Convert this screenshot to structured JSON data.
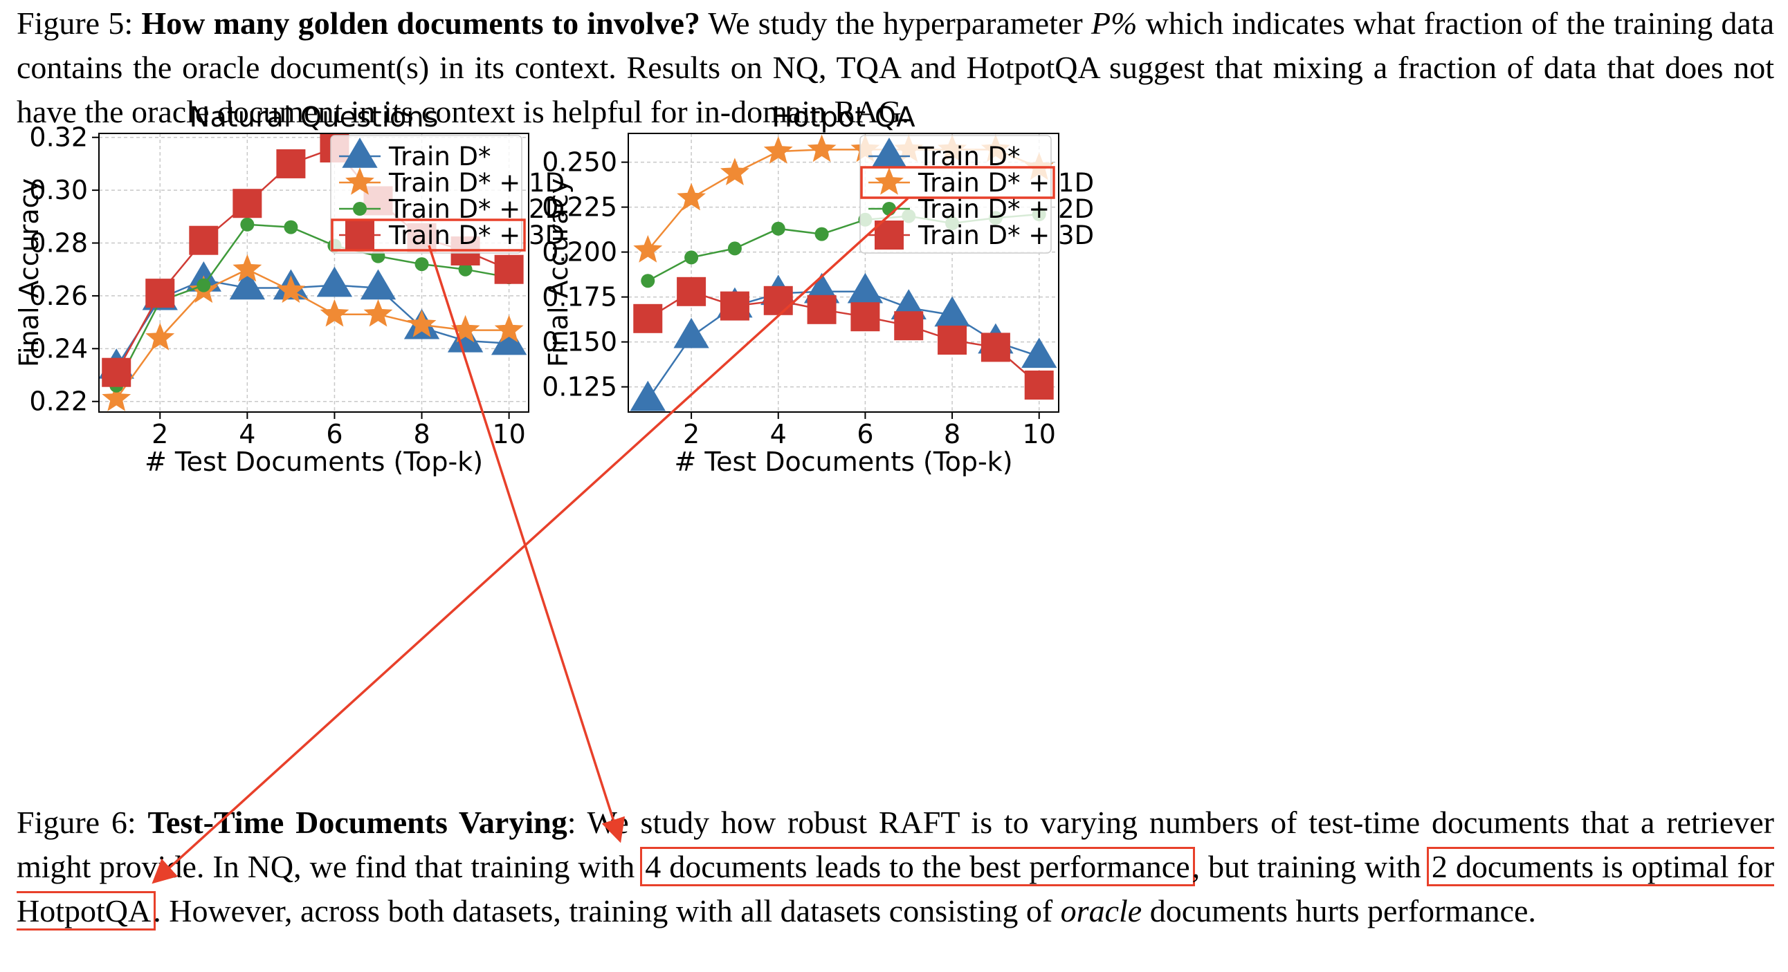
{
  "fig5_caption": {
    "label": "Figure 5:",
    "title": "How many golden documents to involve?",
    "text_a": " We study the hyperparameter ",
    "math": "P%",
    "text_b": " which indicates what fraction of the training data contains the oracle document(s) in its context. Results on NQ, TQA and HotpotQA suggest that mixing a fraction of data that does not have the oracle document in its context is helpful for in-domain RAG."
  },
  "fig6_caption": {
    "label": "Figure 6:",
    "title": "Test-Time Documents Varying",
    "text_a": ": We study how robust RAFT is to varying numbers of test-time documents that a retriever might provide. In NQ, we find that training with ",
    "hl_a": "4 documents leads to the best performance",
    "text_b": ", but training with ",
    "hl_b": "2 documents is optimal for HotpotQA",
    "text_c": ". However, across both datasets, training with all datasets consisting of ",
    "italic": "oracle",
    "text_d": " documents hurts performance."
  },
  "colors": {
    "blue": "#3a75b0",
    "orange": "#f08a34",
    "green": "#3e9a3a",
    "red": "#d03b34",
    "annotation": "#e8402a"
  },
  "chart_data": [
    {
      "type": "line",
      "title": "Natural Questions",
      "xlabel": "# Test Documents (Top-k)",
      "ylabel": "Final Accuracy",
      "xlim": [
        0.6,
        10.45
      ],
      "ylim": [
        0.216,
        0.3215
      ],
      "xticks": [
        2,
        4,
        6,
        8,
        10
      ],
      "yticks": [
        0.22,
        0.24,
        0.26,
        0.28,
        0.3,
        0.32
      ],
      "ytick_labels": [
        "0.22",
        "0.24",
        "0.26",
        "0.28",
        "0.30",
        "0.32"
      ],
      "grid": true,
      "legend_position": "top-right",
      "highlighted_legend_entry": "Train D* + 3D",
      "x": [
        1,
        2,
        3,
        4,
        5,
        6,
        7,
        8,
        9,
        10
      ],
      "series": [
        {
          "name": "Train D*",
          "marker": "triangle",
          "values": [
            0.233,
            0.259,
            0.266,
            0.263,
            0.263,
            0.264,
            0.263,
            0.248,
            0.243,
            0.242
          ]
        },
        {
          "name": "Train D* + 1D",
          "marker": "star",
          "values": [
            0.221,
            0.244,
            0.262,
            0.27,
            0.262,
            0.253,
            0.253,
            0.249,
            0.247,
            0.247
          ]
        },
        {
          "name": "Train D* + 2D",
          "marker": "circle",
          "values": [
            0.226,
            0.258,
            0.264,
            0.287,
            0.286,
            0.279,
            0.275,
            0.272,
            0.27,
            0.267
          ]
        },
        {
          "name": "Train D* + 3D",
          "marker": "square",
          "values": [
            0.231,
            0.261,
            0.281,
            0.295,
            0.31,
            0.316,
            0.296,
            0.282,
            0.277,
            0.27
          ]
        }
      ]
    },
    {
      "type": "line",
      "title": "Hotpot QA",
      "xlabel": "# Test Documents (Top-k)",
      "ylabel": "Final Accuracy",
      "xlim": [
        0.55,
        10.45
      ],
      "ylim": [
        0.111,
        0.266
      ],
      "xticks": [
        2,
        4,
        6,
        8,
        10
      ],
      "yticks": [
        0.125,
        0.15,
        0.175,
        0.2,
        0.225,
        0.25
      ],
      "ytick_labels": [
        "0.125",
        "0.150",
        "0.175",
        "0.200",
        "0.225",
        "0.250"
      ],
      "grid": true,
      "legend_position": "top-right",
      "highlighted_legend_entry": "Train D* + 1D",
      "x": [
        1,
        2,
        3,
        4,
        5,
        6,
        7,
        8,
        9,
        10
      ],
      "series": [
        {
          "name": "Train D*",
          "marker": "triangle",
          "values": [
            0.118,
            0.153,
            0.17,
            0.177,
            0.178,
            0.178,
            0.169,
            0.165,
            0.15,
            0.142
          ]
        },
        {
          "name": "Train D* + 1D",
          "marker": "star",
          "values": [
            0.201,
            0.23,
            0.244,
            0.256,
            0.257,
            0.257,
            0.257,
            0.257,
            0.257,
            0.247
          ]
        },
        {
          "name": "Train D* + 2D",
          "marker": "circle",
          "values": [
            0.184,
            0.197,
            0.202,
            0.213,
            0.21,
            0.218,
            0.22,
            0.216,
            0.219,
            0.221
          ]
        },
        {
          "name": "Train D* + 3D",
          "marker": "square",
          "values": [
            0.163,
            0.178,
            0.17,
            0.173,
            0.168,
            0.164,
            0.159,
            0.151,
            0.147,
            0.126
          ]
        }
      ]
    }
  ]
}
